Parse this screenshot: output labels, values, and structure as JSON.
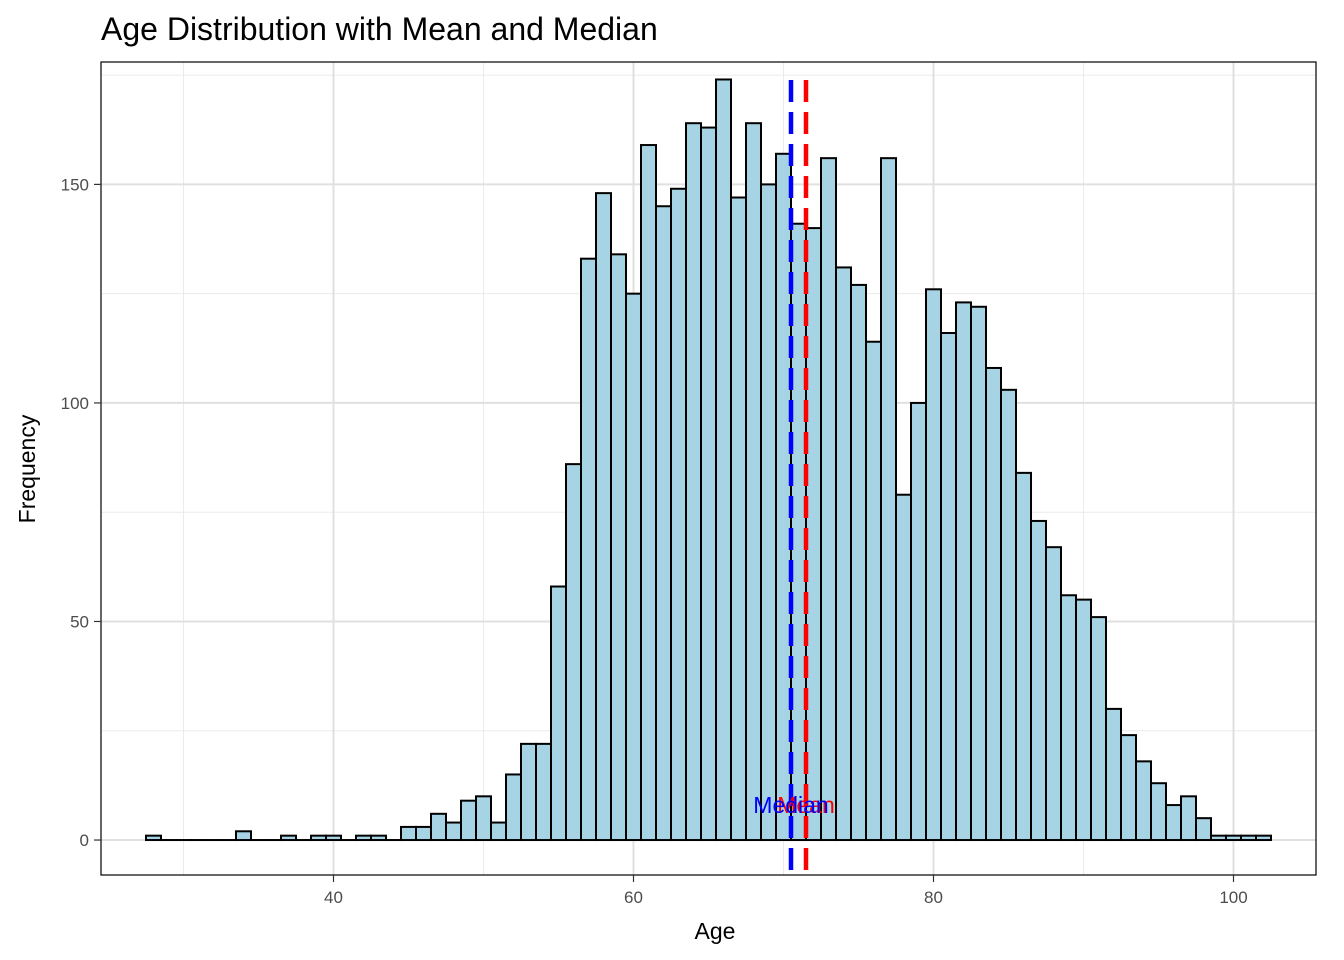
{
  "chart_data": {
    "type": "bar",
    "title": "Age Distribution with Mean and Median",
    "xlabel": "Age",
    "ylabel": "Frequency",
    "xlim": [
      24.5,
      105.5
    ],
    "ylim": [
      -8,
      178
    ],
    "x_ticks": [
      40,
      60,
      80,
      100
    ],
    "y_ticks": [
      0,
      50,
      100,
      150
    ],
    "x_minor": [
      30,
      50,
      70,
      90
    ],
    "y_minor": [
      25,
      75,
      125,
      175
    ],
    "grid": true,
    "bins": {
      "start": 27.5,
      "width": 1,
      "values": [
        1,
        0,
        0,
        0,
        0,
        0,
        2,
        0,
        0,
        1,
        0,
        1,
        1,
        0,
        1,
        1,
        0,
        3,
        3,
        6,
        4,
        9,
        10,
        4,
        15,
        22,
        22,
        58,
        86,
        133,
        148,
        134,
        125,
        159,
        145,
        149,
        164,
        163,
        174,
        147,
        164,
        150,
        157,
        141,
        140,
        156,
        131,
        127,
        114,
        156,
        79,
        100,
        126,
        116,
        123,
        122,
        108,
        103,
        84,
        73,
        67,
        56,
        55,
        51,
        30,
        24,
        18,
        13,
        8,
        10,
        5,
        1,
        1,
        1,
        1
      ]
    },
    "fill_color": "#A6D4E5",
    "edge_color": "#000000",
    "reference_lines": [
      {
        "label": "Median",
        "x": 70.5,
        "color": "#0000FF"
      },
      {
        "label": "Mean",
        "x": 71.5,
        "color": "#FF0000"
      }
    ]
  }
}
